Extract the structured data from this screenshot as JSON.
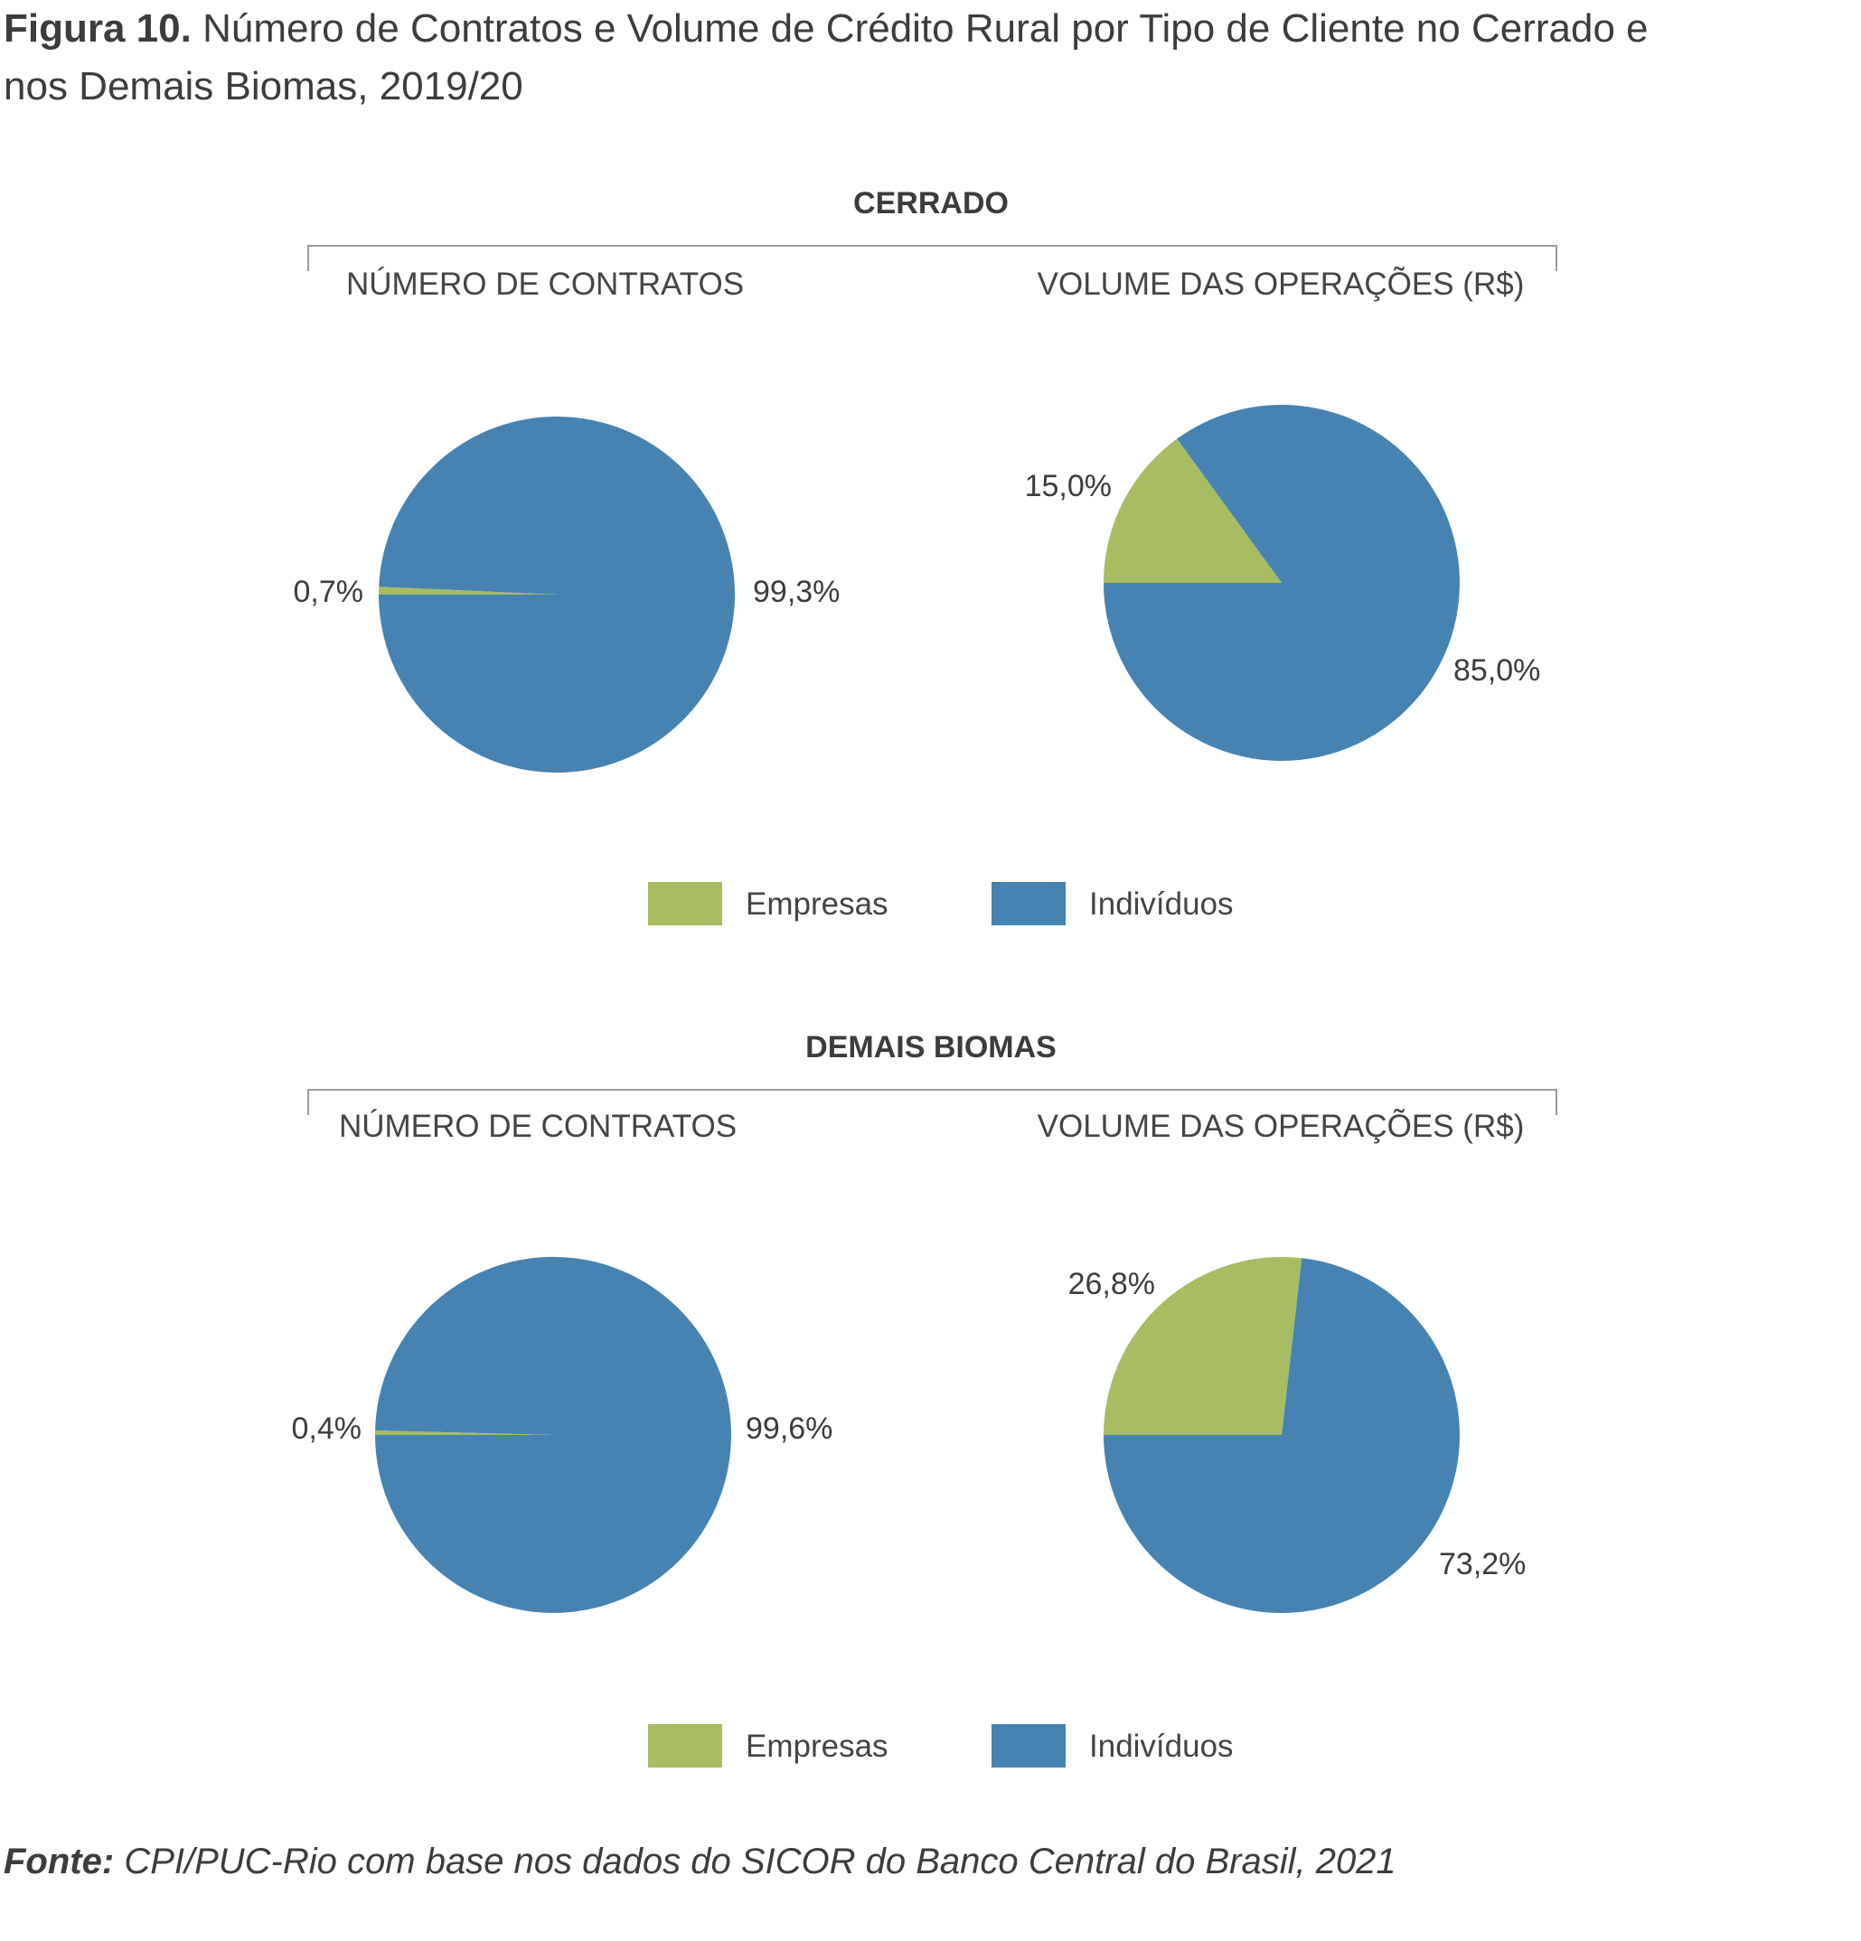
{
  "figure": {
    "label": "Figura 10.",
    "title": "Número de Contratos e Volume de Crédito Rural por Tipo de Cliente no Cerrado e nos Demais Biomas, 2019/20",
    "source_label": "Fonte:",
    "source_text": "CPI/PUC-Rio com base nos dados do SICOR do Banco Central do Brasil, 2021"
  },
  "colors": {
    "empresas": "#a8bc62",
    "individuos": "#4683b2"
  },
  "legend": {
    "empresas": "Empresas",
    "individuos": "Indivíduos"
  },
  "chart_data": [
    {
      "type": "pie",
      "group": "CERRADO",
      "title": "NÚMERO DE CONTRATOS",
      "slices": [
        {
          "name": "Empresas",
          "value": 0.7,
          "label": "0,7%"
        },
        {
          "name": "Indivíduos",
          "value": 99.3,
          "label": "99,3%"
        }
      ]
    },
    {
      "type": "pie",
      "group": "CERRADO",
      "title": "VOLUME DAS OPERAÇÕES (R$)",
      "slices": [
        {
          "name": "Empresas",
          "value": 15.0,
          "label": "15,0%"
        },
        {
          "name": "Indivíduos",
          "value": 85.0,
          "label": "85,0%"
        }
      ]
    },
    {
      "type": "pie",
      "group": "DEMAIS BIOMAS",
      "title": "NÚMERO DE CONTRATOS",
      "slices": [
        {
          "name": "Empresas",
          "value": 0.4,
          "label": "0,4%"
        },
        {
          "name": "Indivíduos",
          "value": 99.6,
          "label": "99,6%"
        }
      ]
    },
    {
      "type": "pie",
      "group": "DEMAIS BIOMAS",
      "title": "VOLUME DAS OPERAÇÕES (R$)",
      "slices": [
        {
          "name": "Empresas",
          "value": 26.8,
          "label": "26,8%"
        },
        {
          "name": "Indivíduos",
          "value": 73.2,
          "label": "73,2%"
        }
      ]
    }
  ]
}
